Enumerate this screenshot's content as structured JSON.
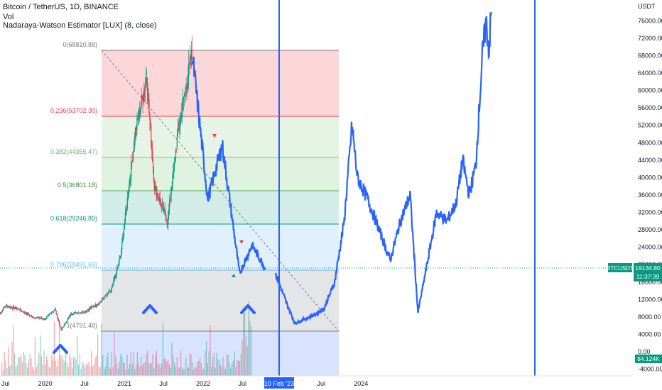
{
  "header": {
    "symbol_line": "Bitcoin / TetherUS, 1D, BINANCE",
    "volume_label": "Vol",
    "indicator_label": "Nadaraya-Watson Estimator [LUX] (8, close)"
  },
  "price_badge": {
    "symbol": "BTCUSDT",
    "price": "19134.80",
    "countdown": "11:37:39"
  },
  "volume_badge": "84.124K",
  "date_badge": "10 Feb '23",
  "axis_unit": "USDT",
  "colors": {
    "price_line": "#2962ff",
    "candle_up": "#089981",
    "candle_down": "#f23645",
    "badge_green": "#089981",
    "badge_blue": "#2962ff"
  },
  "chart_data": {
    "type": "line",
    "y_axis": {
      "unit": "USDT",
      "ticks": [
        "76000.00",
        "72000.00",
        "68000.00",
        "64000.00",
        "60000.00",
        "56000.00",
        "52000.00",
        "48000.00",
        "44000.00",
        "40000.00",
        "36000.00",
        "32000.00",
        "28000.00",
        "24000.00",
        "20000.00",
        "16000.00",
        "12000.00",
        "8000.00",
        "4000.00",
        "0.00",
        "-4000.00"
      ]
    },
    "x_axis": {
      "ticks": [
        "Jul",
        "2020",
        "Jul",
        "2021",
        "Jul",
        "2022",
        "Jul",
        "Jul",
        "2024"
      ]
    },
    "fibonacci": [
      {
        "label": "0(68810.88)",
        "price": 68810.88,
        "color": "#787b86"
      },
      {
        "label": "0.236(53702.30)",
        "price": 53702.3,
        "color": "#f23645"
      },
      {
        "label": "0.382(44355.47)",
        "price": 44355.47,
        "color": "#81c784"
      },
      {
        "label": "0.5(36801.18)",
        "price": 36801.18,
        "color": "#4caf50"
      },
      {
        "label": "0.618(29246.89)",
        "price": 29246.89,
        "color": "#089981"
      },
      {
        "label": "0.786(18491.63)",
        "price": 18491.63,
        "color": "#64b5f6"
      },
      {
        "label": "1(4791.48)",
        "price": 4791.48,
        "color": "#787b86"
      }
    ],
    "series": [
      {
        "values": [
          [
            "2019-06-01",
            8500
          ],
          [
            "2019-07-01",
            10500
          ],
          [
            "2019-09-01",
            9800
          ],
          [
            "2019-11-01",
            8000
          ],
          [
            "2020-01-01",
            7500
          ],
          [
            "2020-02-15",
            9800
          ],
          [
            "2020-03-15",
            5000
          ],
          [
            "2020-05-01",
            8800
          ],
          [
            "2020-07-01",
            9200
          ],
          [
            "2020-09-01",
            11000
          ],
          [
            "2020-11-01",
            14000
          ],
          [
            "2020-12-15",
            22000
          ],
          [
            "2021-01-15",
            35000
          ],
          [
            "2021-02-20",
            50000
          ],
          [
            "2021-04-14",
            63500
          ],
          [
            "2021-05-20",
            38000
          ],
          [
            "2021-07-20",
            30000
          ],
          [
            "2021-09-05",
            50000
          ],
          [
            "2021-11-10",
            68800
          ],
          [
            "2022-01-22",
            35000
          ],
          [
            "2022-03-30",
            47500
          ],
          [
            "2022-06-18",
            18000
          ],
          [
            "2022-08-15",
            24500
          ],
          [
            "2022-10-15",
            19134.8
          ]
        ]
      },
      {
        "values": [
          [
            "2022-12-01",
            18000
          ],
          [
            "2023-01-15",
            12000
          ],
          [
            "2023-03-01",
            6500
          ],
          [
            "2023-04-15",
            7500
          ],
          [
            "2023-06-01",
            8500
          ],
          [
            "2023-07-15",
            10000
          ],
          [
            "2023-09-01",
            16000
          ],
          [
            "2023-10-15",
            30000
          ],
          [
            "2023-11-20",
            52000
          ],
          [
            "2023-12-15",
            40000
          ],
          [
            "2024-02-01",
            35000
          ],
          [
            "2024-04-01",
            27000
          ],
          [
            "2024-05-15",
            21000
          ],
          [
            "2024-07-01",
            30000
          ],
          [
            "2024-08-15",
            36000
          ],
          [
            "2024-09-20",
            9000
          ],
          [
            "2024-11-01",
            20000
          ],
          [
            "2024-12-15",
            32000
          ],
          [
            "2025-02-01",
            30000
          ],
          [
            "2025-03-15",
            34000
          ],
          [
            "2025-04-15",
            44000
          ],
          [
            "2025-05-15",
            36000
          ],
          [
            "2025-06-15",
            43000
          ],
          [
            "2025-07-15",
            68000
          ],
          [
            "2025-08-01",
            76000
          ],
          [
            "2025-08-15",
            69000
          ],
          [
            "2025-08-25",
            78000
          ]
        ]
      }
    ]
  }
}
